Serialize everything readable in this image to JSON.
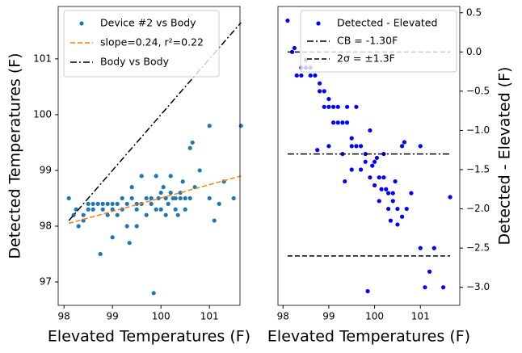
{
  "chart_data": [
    {
      "type": "scatter",
      "x_label": "Elevated Temperatures (F)",
      "y_label": "Detected Temperatures (F)",
      "xlim": [
        97.88,
        101.63
      ],
      "ylim": [
        96.58,
        101.94
      ],
      "xticks": [
        98,
        99,
        100,
        101
      ],
      "yticks": [
        97,
        98,
        99,
        100,
        101
      ],
      "yaxis_side": "left",
      "legend": "upper left",
      "series": [
        {
          "name": "Device #2 vs Body",
          "color": "#1f77b4",
          "style": "markers",
          "x": [
            98.1,
            98.2,
            98.25,
            98.3,
            98.4,
            98.4,
            98.5,
            98.5,
            98.6,
            98.6,
            98.7,
            98.75,
            98.8,
            98.8,
            98.9,
            98.9,
            99.0,
            99.0,
            99.0,
            99.1,
            99.1,
            99.2,
            99.2,
            99.3,
            99.3,
            99.35,
            99.4,
            99.4,
            99.5,
            99.5,
            99.5,
            99.6,
            99.6,
            99.7,
            99.7,
            99.8,
            99.8,
            99.85,
            99.9,
            99.9,
            99.95,
            100.0,
            100.0,
            100.05,
            100.1,
            100.1,
            100.15,
            100.2,
            100.2,
            100.25,
            100.3,
            100.3,
            100.35,
            100.4,
            100.4,
            100.45,
            100.5,
            100.5,
            100.6,
            100.6,
            100.65,
            100.7,
            100.8,
            101.0,
            101.0,
            101.1,
            101.2,
            101.3,
            101.5,
            101.65
          ],
          "values": [
            98.5,
            98.2,
            98.3,
            98.0,
            98.1,
            98.2,
            98.3,
            98.4,
            98.3,
            98.4,
            98.4,
            97.5,
            98.3,
            98.4,
            98.2,
            98.4,
            98.4,
            98.3,
            97.8,
            98.4,
            98.2,
            98.3,
            98.5,
            98.0,
            98.4,
            97.7,
            98.7,
            98.5,
            98.3,
            98.4,
            98.0,
            98.9,
            98.4,
            98.5,
            98.2,
            98.4,
            98.5,
            96.8,
            98.9,
            98.3,
            98.5,
            98.6,
            98.3,
            98.7,
            98.5,
            98.2,
            98.4,
            98.6,
            98.9,
            98.5,
            98.3,
            98.5,
            98.2,
            98.5,
            98.6,
            98.8,
            98.5,
            98.3,
            99.4,
            98.5,
            99.5,
            98.7,
            99.0,
            99.8,
            98.5,
            98.1,
            98.4,
            98.8,
            98.5,
            99.8
          ]
        },
        {
          "name": "slope=0.24, r²=0.22",
          "color": "#ff7f0e",
          "style": "dashed",
          "x": [
            98.1,
            101.65
          ],
          "values": [
            98.05,
            98.9
          ]
        },
        {
          "name": "Body vs Body",
          "color": "#000000",
          "style": "dashdot",
          "x": [
            98.1,
            101.65
          ],
          "values": [
            98.1,
            101.65
          ]
        }
      ]
    },
    {
      "type": "scatter",
      "x_label": "Elevated Temperatures (F)",
      "y_label": "Detected - Elevated (F)",
      "xlim": [
        97.89,
        101.86
      ],
      "ylim": [
        -3.23,
        0.58
      ],
      "xticks": [
        98,
        99,
        100,
        101
      ],
      "yticks": [
        0.5,
        {
          "value": 0.0,
          "label": "0.0"
        },
        {
          "value": -0.5,
          "label": "−0.5"
        },
        {
          "value": -1.0,
          "label": "−1.0"
        },
        {
          "value": -1.5,
          "label": "−1.5"
        },
        {
          "value": -2.0,
          "label": "−2.0"
        },
        {
          "value": -2.5,
          "label": "−2.5"
        },
        {
          "value": -3.0,
          "label": "−3.0"
        }
      ],
      "yaxis_side": "right",
      "legend": "upper right",
      "series": [
        {
          "name": "Detected - Elevated",
          "color": "#0000ff",
          "style": "markers",
          "x": [
            98.1,
            98.2,
            98.25,
            98.3,
            98.4,
            98.4,
            98.5,
            98.5,
            98.6,
            98.6,
            98.7,
            98.75,
            98.8,
            98.8,
            98.9,
            98.9,
            99.0,
            99.0,
            99.0,
            99.1,
            99.1,
            99.2,
            99.2,
            99.3,
            99.3,
            99.35,
            99.4,
            99.4,
            99.5,
            99.5,
            99.5,
            99.6,
            99.6,
            99.7,
            99.7,
            99.8,
            99.8,
            99.85,
            99.9,
            99.9,
            99.95,
            100.0,
            100.0,
            100.05,
            100.1,
            100.1,
            100.15,
            100.2,
            100.2,
            100.25,
            100.3,
            100.3,
            100.35,
            100.4,
            100.4,
            100.45,
            100.5,
            100.5,
            100.6,
            100.6,
            100.65,
            100.7,
            100.8,
            101.0,
            101.0,
            101.1,
            101.2,
            101.3,
            101.5,
            101.65
          ],
          "values": [
            0.4,
            0.0,
            0.05,
            -0.3,
            -0.3,
            -0.2,
            -0.2,
            -0.1,
            -0.3,
            -0.2,
            -0.3,
            -1.25,
            -0.5,
            -0.4,
            -0.7,
            -0.5,
            -0.6,
            -0.7,
            -1.2,
            -0.7,
            -0.9,
            -0.9,
            -0.7,
            -1.3,
            -0.9,
            -1.65,
            -0.7,
            -0.9,
            -1.2,
            -1.1,
            -1.5,
            -0.7,
            -1.2,
            -1.2,
            -1.5,
            -1.4,
            -1.3,
            -3.05,
            -1.0,
            -1.6,
            -1.45,
            -1.4,
            -1.7,
            -1.35,
            -1.6,
            -1.9,
            -1.75,
            -1.6,
            -1.3,
            -1.75,
            -2.0,
            -1.8,
            -2.15,
            -1.9,
            -1.8,
            -1.65,
            -2.0,
            -2.2,
            -1.2,
            -2.1,
            -1.15,
            -2.0,
            -1.8,
            -1.2,
            -2.5,
            -3.0,
            -2.8,
            -2.5,
            -3.0,
            -1.85
          ]
        },
        {
          "name": "CB = -1.30F",
          "color": "#000000",
          "style": "dashdot",
          "x": [
            98.1,
            101.65
          ],
          "values": [
            -1.3,
            -1.3
          ]
        },
        {
          "name": "2σ = ±1.3F",
          "color": "#000000",
          "style": "dashed",
          "x": [
            98.1,
            101.65,
            101.65,
            98.1,
            101.65
          ],
          "values": [
            0.0,
            0.0,
            null,
            -2.6,
            -2.6
          ]
        }
      ]
    }
  ]
}
